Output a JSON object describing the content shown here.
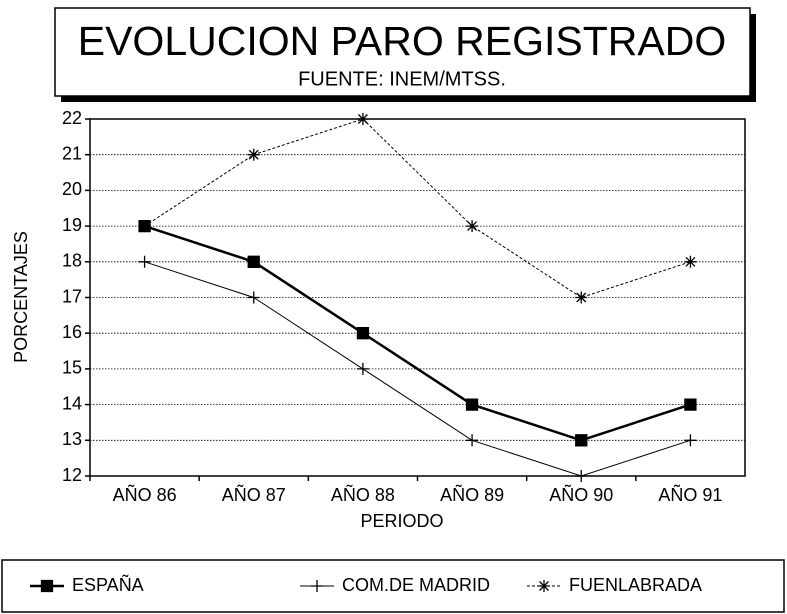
{
  "chart_data": {
    "type": "line",
    "title": "EVOLUCION PARO REGISTRADO",
    "subtitle": "FUENTE: INEM/MTSS.",
    "x_label": "PERIODO",
    "y_label": "PORCENTAJES",
    "categories": [
      "AÑO 86",
      "AÑO 87",
      "AÑO 88",
      "AÑO 89",
      "AÑO 90",
      "AÑO 91"
    ],
    "series": [
      {
        "name": "ESPAÑA",
        "color": "#000000",
        "marker": "square",
        "values": [
          19,
          18,
          16,
          14,
          13,
          14
        ]
      },
      {
        "name": "COM.DE MADRID",
        "color": "#000000",
        "marker": "plus",
        "values": [
          18,
          17,
          15,
          13,
          12,
          13
        ]
      },
      {
        "name": "FUENLABRADA",
        "color": "#000000",
        "marker": "star",
        "values": [
          19,
          21,
          22,
          19,
          17,
          18
        ]
      }
    ],
    "ylim": [
      12,
      22
    ],
    "yticks": [
      12,
      13,
      14,
      15,
      16,
      17,
      18,
      19,
      20,
      21,
      22
    ],
    "grid": true,
    "legend": "bottom"
  }
}
